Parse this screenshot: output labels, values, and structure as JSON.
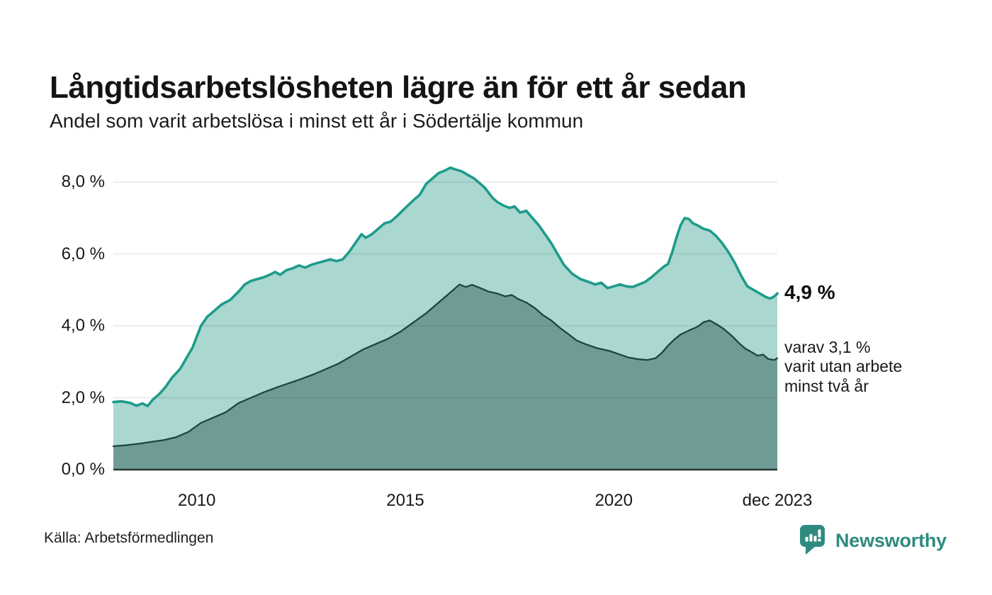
{
  "header": {
    "title": "Långtidsarbetslösheten lägre än för ett år sedan",
    "subtitle": "Andel som varit arbetslösa i minst ett år i Södertälje kommun"
  },
  "annotation": {
    "value_label": "4,9 %",
    "detail_line1": "varav 3,1 %",
    "detail_line2": "varit utan arbete",
    "detail_line3": "minst två år"
  },
  "footer": {
    "source": "Källa: Arbetsförmedlingen",
    "brand": "Newsworthy"
  },
  "colors": {
    "brand_teal": "#2f8b80",
    "line_1yr": "#1d9b8b",
    "fill_1yr": "#aad7d0",
    "line_2yr": "#1b453f",
    "fill_2yr": "#6f9b96",
    "gridline": "rgba(20,20,20,0.08)",
    "baseline": "#2a3432"
  },
  "chart_data": {
    "type": "area",
    "title": "Långtidsarbetslösheten lägre än för ett år sedan",
    "subtitle": "Andel som varit arbetslösa i minst ett år i Södertälje kommun",
    "xlabel": "",
    "ylabel": "",
    "x_range": [
      2008.0,
      2023.92
    ],
    "ylim": [
      0,
      8.6
    ],
    "grid": true,
    "legend_position": "none",
    "y_ticks": [
      {
        "label": "0,0 %",
        "value": 0
      },
      {
        "label": "2,0 %",
        "value": 2
      },
      {
        "label": "4,0 %",
        "value": 4
      },
      {
        "label": "6,0 %",
        "value": 6
      },
      {
        "label": "8,0 %",
        "value": 8
      }
    ],
    "x_ticks": [
      {
        "label": "2010",
        "value": 2010
      },
      {
        "label": "2015",
        "value": 2015
      },
      {
        "label": "2020",
        "value": 2020
      },
      {
        "label": "dec 2023",
        "value": 2023.92
      }
    ],
    "series": [
      {
        "name": "Arbetslösa minst ett år",
        "end_value": 4.9,
        "end_label": "4,9 %",
        "color": "#1d9b8b",
        "fill": "#aad7d0",
        "points": [
          [
            2008.0,
            1.88
          ],
          [
            2008.2,
            1.9
          ],
          [
            2008.4,
            1.86
          ],
          [
            2008.55,
            1.78
          ],
          [
            2008.7,
            1.84
          ],
          [
            2008.82,
            1.77
          ],
          [
            2008.95,
            1.95
          ],
          [
            2009.1,
            2.1
          ],
          [
            2009.25,
            2.3
          ],
          [
            2009.4,
            2.55
          ],
          [
            2009.6,
            2.8
          ],
          [
            2009.75,
            3.1
          ],
          [
            2009.9,
            3.4
          ],
          [
            2010.1,
            4.0
          ],
          [
            2010.25,
            4.25
          ],
          [
            2010.4,
            4.4
          ],
          [
            2010.6,
            4.6
          ],
          [
            2010.8,
            4.72
          ],
          [
            2011.0,
            4.95
          ],
          [
            2011.15,
            5.15
          ],
          [
            2011.3,
            5.25
          ],
          [
            2011.45,
            5.3
          ],
          [
            2011.6,
            5.35
          ],
          [
            2011.75,
            5.42
          ],
          [
            2011.88,
            5.5
          ],
          [
            2012.0,
            5.42
          ],
          [
            2012.15,
            5.55
          ],
          [
            2012.3,
            5.6
          ],
          [
            2012.45,
            5.68
          ],
          [
            2012.6,
            5.62
          ],
          [
            2012.75,
            5.7
          ],
          [
            2012.9,
            5.75
          ],
          [
            2013.05,
            5.8
          ],
          [
            2013.2,
            5.85
          ],
          [
            2013.35,
            5.8
          ],
          [
            2013.5,
            5.85
          ],
          [
            2013.65,
            6.05
          ],
          [
            2013.8,
            6.3
          ],
          [
            2013.95,
            6.55
          ],
          [
            2014.05,
            6.45
          ],
          [
            2014.2,
            6.55
          ],
          [
            2014.35,
            6.7
          ],
          [
            2014.5,
            6.85
          ],
          [
            2014.65,
            6.9
          ],
          [
            2014.8,
            7.05
          ],
          [
            2015.0,
            7.28
          ],
          [
            2015.2,
            7.5
          ],
          [
            2015.35,
            7.65
          ],
          [
            2015.5,
            7.95
          ],
          [
            2015.65,
            8.1
          ],
          [
            2015.8,
            8.25
          ],
          [
            2015.95,
            8.32
          ],
          [
            2016.08,
            8.4
          ],
          [
            2016.2,
            8.35
          ],
          [
            2016.35,
            8.3
          ],
          [
            2016.5,
            8.2
          ],
          [
            2016.65,
            8.1
          ],
          [
            2016.8,
            7.95
          ],
          [
            2016.9,
            7.85
          ],
          [
            2017.0,
            7.7
          ],
          [
            2017.1,
            7.55
          ],
          [
            2017.2,
            7.45
          ],
          [
            2017.35,
            7.35
          ],
          [
            2017.5,
            7.28
          ],
          [
            2017.62,
            7.32
          ],
          [
            2017.75,
            7.15
          ],
          [
            2017.9,
            7.2
          ],
          [
            2018.05,
            7.0
          ],
          [
            2018.2,
            6.8
          ],
          [
            2018.35,
            6.55
          ],
          [
            2018.5,
            6.3
          ],
          [
            2018.65,
            6.0
          ],
          [
            2018.8,
            5.7
          ],
          [
            2019.0,
            5.45
          ],
          [
            2019.2,
            5.3
          ],
          [
            2019.4,
            5.22
          ],
          [
            2019.55,
            5.15
          ],
          [
            2019.7,
            5.2
          ],
          [
            2019.85,
            5.05
          ],
          [
            2020.0,
            5.1
          ],
          [
            2020.15,
            5.15
          ],
          [
            2020.3,
            5.1
          ],
          [
            2020.45,
            5.08
          ],
          [
            2020.6,
            5.15
          ],
          [
            2020.75,
            5.22
          ],
          [
            2020.9,
            5.35
          ],
          [
            2021.05,
            5.5
          ],
          [
            2021.2,
            5.65
          ],
          [
            2021.3,
            5.72
          ],
          [
            2021.4,
            6.05
          ],
          [
            2021.5,
            6.45
          ],
          [
            2021.6,
            6.8
          ],
          [
            2021.7,
            7.0
          ],
          [
            2021.8,
            6.97
          ],
          [
            2021.9,
            6.85
          ],
          [
            2022.0,
            6.8
          ],
          [
            2022.15,
            6.7
          ],
          [
            2022.3,
            6.65
          ],
          [
            2022.45,
            6.5
          ],
          [
            2022.6,
            6.3
          ],
          [
            2022.75,
            6.05
          ],
          [
            2022.9,
            5.75
          ],
          [
            2023.05,
            5.4
          ],
          [
            2023.2,
            5.1
          ],
          [
            2023.35,
            5.0
          ],
          [
            2023.5,
            4.9
          ],
          [
            2023.65,
            4.8
          ],
          [
            2023.75,
            4.76
          ],
          [
            2023.85,
            4.82
          ],
          [
            2023.92,
            4.9
          ]
        ]
      },
      {
        "name": "Arbetslösa minst två år",
        "end_value": 3.1,
        "end_label": "3,1 %",
        "color": "#1b453f",
        "fill": "#6f9b96",
        "points": [
          [
            2008.0,
            0.65
          ],
          [
            2008.3,
            0.68
          ],
          [
            2008.6,
            0.72
          ],
          [
            2008.9,
            0.77
          ],
          [
            2009.2,
            0.82
          ],
          [
            2009.5,
            0.9
          ],
          [
            2009.8,
            1.05
          ],
          [
            2010.1,
            1.3
          ],
          [
            2010.4,
            1.45
          ],
          [
            2010.7,
            1.6
          ],
          [
            2011.0,
            1.85
          ],
          [
            2011.3,
            2.0
          ],
          [
            2011.6,
            2.15
          ],
          [
            2011.9,
            2.28
          ],
          [
            2012.2,
            2.4
          ],
          [
            2012.5,
            2.52
          ],
          [
            2012.8,
            2.65
          ],
          [
            2013.1,
            2.8
          ],
          [
            2013.4,
            2.95
          ],
          [
            2013.7,
            3.15
          ],
          [
            2014.0,
            3.35
          ],
          [
            2014.3,
            3.5
          ],
          [
            2014.6,
            3.65
          ],
          [
            2014.9,
            3.85
          ],
          [
            2015.2,
            4.1
          ],
          [
            2015.5,
            4.35
          ],
          [
            2015.8,
            4.65
          ],
          [
            2016.0,
            4.85
          ],
          [
            2016.15,
            5.0
          ],
          [
            2016.3,
            5.15
          ],
          [
            2016.45,
            5.08
          ],
          [
            2016.6,
            5.14
          ],
          [
            2016.8,
            5.05
          ],
          [
            2017.0,
            4.95
          ],
          [
            2017.2,
            4.9
          ],
          [
            2017.4,
            4.82
          ],
          [
            2017.55,
            4.86
          ],
          [
            2017.7,
            4.75
          ],
          [
            2017.9,
            4.65
          ],
          [
            2018.1,
            4.5
          ],
          [
            2018.3,
            4.3
          ],
          [
            2018.5,
            4.15
          ],
          [
            2018.7,
            3.95
          ],
          [
            2018.9,
            3.78
          ],
          [
            2019.1,
            3.6
          ],
          [
            2019.3,
            3.5
          ],
          [
            2019.6,
            3.38
          ],
          [
            2019.9,
            3.3
          ],
          [
            2020.1,
            3.22
          ],
          [
            2020.35,
            3.12
          ],
          [
            2020.6,
            3.07
          ],
          [
            2020.8,
            3.05
          ],
          [
            2021.0,
            3.1
          ],
          [
            2021.15,
            3.25
          ],
          [
            2021.3,
            3.45
          ],
          [
            2021.45,
            3.62
          ],
          [
            2021.6,
            3.76
          ],
          [
            2021.8,
            3.87
          ],
          [
            2022.0,
            3.97
          ],
          [
            2022.15,
            4.1
          ],
          [
            2022.3,
            4.15
          ],
          [
            2022.5,
            4.02
          ],
          [
            2022.65,
            3.9
          ],
          [
            2022.85,
            3.7
          ],
          [
            2023.0,
            3.52
          ],
          [
            2023.15,
            3.37
          ],
          [
            2023.3,
            3.27
          ],
          [
            2023.45,
            3.17
          ],
          [
            2023.58,
            3.2
          ],
          [
            2023.7,
            3.08
          ],
          [
            2023.85,
            3.05
          ],
          [
            2023.92,
            3.1
          ]
        ]
      }
    ]
  }
}
